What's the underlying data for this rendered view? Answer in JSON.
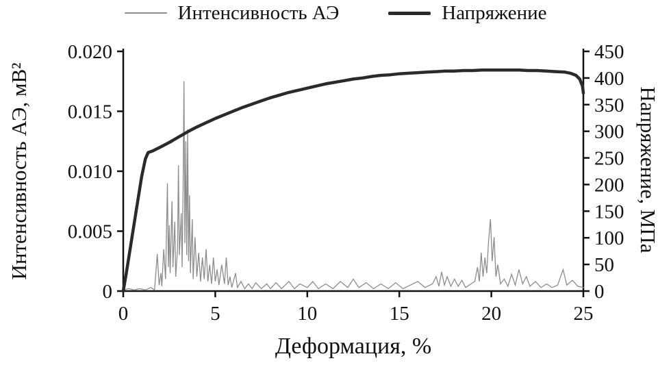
{
  "figure": {
    "background": "#ffffff",
    "text_color": "#111111"
  },
  "chart_data": {
    "type": "line",
    "title": "",
    "xlabel": "Деформация, %",
    "xlim": [
      0,
      25
    ],
    "xticks": [
      0,
      5,
      10,
      15,
      20,
      25
    ],
    "xtick_labels": [
      "0",
      "5",
      "10",
      "15",
      "20",
      "25"
    ],
    "grid": false,
    "legend_position": "top",
    "axes": {
      "left": {
        "label": "Интенсивность АЭ, мВ²",
        "lim": [
          0,
          0.02
        ],
        "ticks": [
          0,
          0.005,
          0.01,
          0.015,
          0.02
        ],
        "tick_labels": [
          "0",
          "0.005",
          "0.010",
          "0.015",
          "0.020"
        ]
      },
      "right": {
        "label": "Напряжение, МПа",
        "lim": [
          0,
          450
        ],
        "ticks": [
          0,
          50,
          100,
          150,
          200,
          250,
          300,
          350,
          400,
          450
        ],
        "tick_labels": [
          "0",
          "50",
          "100",
          "150",
          "200",
          "250",
          "300",
          "350",
          "400",
          "450"
        ]
      }
    },
    "series": [
      {
        "name": "Интенсивность АЭ",
        "axis": "left",
        "color": "#8c8c8c",
        "line_width": 1.3,
        "legend_swatch_height": 2,
        "points": [
          [
            0,
            0.0001
          ],
          [
            0.3,
            0.0002
          ],
          [
            0.6,
            0.0001
          ],
          [
            0.9,
            0.0002
          ],
          [
            1.2,
            0.0001
          ],
          [
            1.5,
            0.0003
          ],
          [
            1.7,
            0.0001
          ],
          [
            1.85,
            0.0031
          ],
          [
            1.95,
            0.0005
          ],
          [
            2.05,
            0.0015
          ],
          [
            2.1,
            0.0004
          ],
          [
            2.2,
            0.0035
          ],
          [
            2.3,
            0.001
          ],
          [
            2.4,
            0.009
          ],
          [
            2.45,
            0.002
          ],
          [
            2.5,
            0.0055
          ],
          [
            2.55,
            0.0015
          ],
          [
            2.65,
            0.0075
          ],
          [
            2.7,
            0.002
          ],
          [
            2.8,
            0.0058
          ],
          [
            2.85,
            0.0012
          ],
          [
            2.95,
            0.0035
          ],
          [
            3.0,
            0.0105
          ],
          [
            3.05,
            0.003
          ],
          [
            3.15,
            0.0065
          ],
          [
            3.2,
            0.002
          ],
          [
            3.25,
            0.0085
          ],
          [
            3.3,
            0.0175
          ],
          [
            3.35,
            0.004
          ],
          [
            3.4,
            0.0125
          ],
          [
            3.45,
            0.003
          ],
          [
            3.5,
            0.0135
          ],
          [
            3.55,
            0.0025
          ],
          [
            3.6,
            0.008
          ],
          [
            3.65,
            0.0015
          ],
          [
            3.75,
            0.006
          ],
          [
            3.8,
            0.001
          ],
          [
            3.9,
            0.0045
          ],
          [
            4.0,
            0.0012
          ],
          [
            4.1,
            0.0032
          ],
          [
            4.2,
            0.0008
          ],
          [
            4.3,
            0.0028
          ],
          [
            4.4,
            0.001
          ],
          [
            4.5,
            0.0035
          ],
          [
            4.6,
            0.0008
          ],
          [
            4.7,
            0.0022
          ],
          [
            4.8,
            0.0006
          ],
          [
            4.9,
            0.0028
          ],
          [
            5.0,
            0.0008
          ],
          [
            5.1,
            0.0018
          ],
          [
            5.2,
            0.0005
          ],
          [
            5.35,
            0.0022
          ],
          [
            5.5,
            0.0006
          ],
          [
            5.6,
            0.0028
          ],
          [
            5.7,
            0.0005
          ],
          [
            5.8,
            0.0012
          ],
          [
            5.9,
            0.0003
          ],
          [
            6.1,
            0.0015
          ],
          [
            6.2,
            0.0003
          ],
          [
            6.4,
            0.0008
          ],
          [
            6.6,
            0.0002
          ],
          [
            6.8,
            0.0006
          ],
          [
            7.0,
            0.0002
          ],
          [
            7.2,
            0.0007
          ],
          [
            7.5,
            0.0002
          ],
          [
            7.8,
            0.0006
          ],
          [
            8.0,
            0.0002
          ],
          [
            8.3,
            0.0007
          ],
          [
            8.6,
            0.0002
          ],
          [
            9.0,
            0.0008
          ],
          [
            9.3,
            0.0002
          ],
          [
            9.6,
            0.0006
          ],
          [
            10.0,
            0.0003
          ],
          [
            10.3,
            0.0008
          ],
          [
            10.6,
            0.0002
          ],
          [
            11.0,
            0.0006
          ],
          [
            11.4,
            0.0002
          ],
          [
            11.8,
            0.0008
          ],
          [
            12.2,
            0.0003
          ],
          [
            12.5,
            0.001
          ],
          [
            12.8,
            0.0003
          ],
          [
            13.2,
            0.0007
          ],
          [
            13.6,
            0.0002
          ],
          [
            14.0,
            0.0006
          ],
          [
            14.4,
            0.0002
          ],
          [
            14.8,
            0.0007
          ],
          [
            15.2,
            0.0002
          ],
          [
            15.6,
            0.0005
          ],
          [
            16.0,
            0.0008
          ],
          [
            16.4,
            0.0003
          ],
          [
            16.8,
            0.0006
          ],
          [
            17.0,
            0.0012
          ],
          [
            17.15,
            0.0004
          ],
          [
            17.3,
            0.0016
          ],
          [
            17.45,
            0.0005
          ],
          [
            17.6,
            0.0012
          ],
          [
            17.8,
            0.0004
          ],
          [
            18.0,
            0.001
          ],
          [
            18.2,
            0.0004
          ],
          [
            18.4,
            0.0009
          ],
          [
            18.6,
            0.0003
          ],
          [
            18.9,
            0.0006
          ],
          [
            19.1,
            0.0008
          ],
          [
            19.25,
            0.002
          ],
          [
            19.35,
            0.0008
          ],
          [
            19.45,
            0.0032
          ],
          [
            19.55,
            0.0012
          ],
          [
            19.65,
            0.0028
          ],
          [
            19.75,
            0.0015
          ],
          [
            19.85,
            0.0042
          ],
          [
            19.95,
            0.006
          ],
          [
            20.05,
            0.0025
          ],
          [
            20.15,
            0.0045
          ],
          [
            20.25,
            0.0012
          ],
          [
            20.35,
            0.0022
          ],
          [
            20.5,
            0.0006
          ],
          [
            20.7,
            0.001
          ],
          [
            20.9,
            0.0004
          ],
          [
            21.1,
            0.0014
          ],
          [
            21.3,
            0.0005
          ],
          [
            21.5,
            0.0018
          ],
          [
            21.7,
            0.0006
          ],
          [
            21.9,
            0.0012
          ],
          [
            22.1,
            0.0004
          ],
          [
            22.4,
            0.0008
          ],
          [
            22.7,
            0.0003
          ],
          [
            23.0,
            0.0006
          ],
          [
            23.3,
            0.0003
          ],
          [
            23.6,
            0.0005
          ],
          [
            23.9,
            0.0018
          ],
          [
            24.1,
            0.0005
          ],
          [
            24.4,
            0.0009
          ],
          [
            24.7,
            0.0004
          ],
          [
            25.0,
            0.0003
          ]
        ]
      },
      {
        "name": "Напряжение",
        "axis": "right",
        "color": "#2a2a2a",
        "line_width": 4.5,
        "legend_swatch_height": 5,
        "points": [
          [
            0,
            0
          ],
          [
            0.15,
            30
          ],
          [
            0.4,
            85
          ],
          [
            0.7,
            150
          ],
          [
            1.0,
            215
          ],
          [
            1.2,
            248
          ],
          [
            1.35,
            260
          ],
          [
            1.6,
            263
          ],
          [
            2.0,
            270
          ],
          [
            2.5,
            279
          ],
          [
            3.0,
            289
          ],
          [
            3.5,
            299
          ],
          [
            4.0,
            308
          ],
          [
            4.5,
            316
          ],
          [
            5.0,
            324
          ],
          [
            5.5,
            331
          ],
          [
            6.0,
            338
          ],
          [
            6.5,
            345
          ],
          [
            7.0,
            351
          ],
          [
            7.5,
            357
          ],
          [
            8.0,
            363
          ],
          [
            8.5,
            368
          ],
          [
            9.0,
            373
          ],
          [
            9.5,
            377
          ],
          [
            10.0,
            381
          ],
          [
            10.5,
            385
          ],
          [
            11.0,
            389
          ],
          [
            11.5,
            392
          ],
          [
            12.0,
            395
          ],
          [
            12.5,
            398
          ],
          [
            13.0,
            400
          ],
          [
            13.5,
            403
          ],
          [
            14.0,
            405
          ],
          [
            14.5,
            406
          ],
          [
            15.0,
            408
          ],
          [
            15.5,
            409
          ],
          [
            16.0,
            410
          ],
          [
            16.5,
            411
          ],
          [
            17.0,
            412
          ],
          [
            17.5,
            413
          ],
          [
            18.0,
            413
          ],
          [
            18.5,
            414
          ],
          [
            19.0,
            414
          ],
          [
            19.5,
            415
          ],
          [
            20.0,
            415
          ],
          [
            20.5,
            415
          ],
          [
            21.0,
            415
          ],
          [
            21.5,
            415
          ],
          [
            22.0,
            414
          ],
          [
            22.5,
            414
          ],
          [
            23.0,
            413
          ],
          [
            23.5,
            412
          ],
          [
            24.0,
            411
          ],
          [
            24.3,
            409
          ],
          [
            24.6,
            405
          ],
          [
            24.8,
            398
          ],
          [
            24.95,
            385
          ],
          [
            25.0,
            372
          ]
        ]
      }
    ]
  }
}
